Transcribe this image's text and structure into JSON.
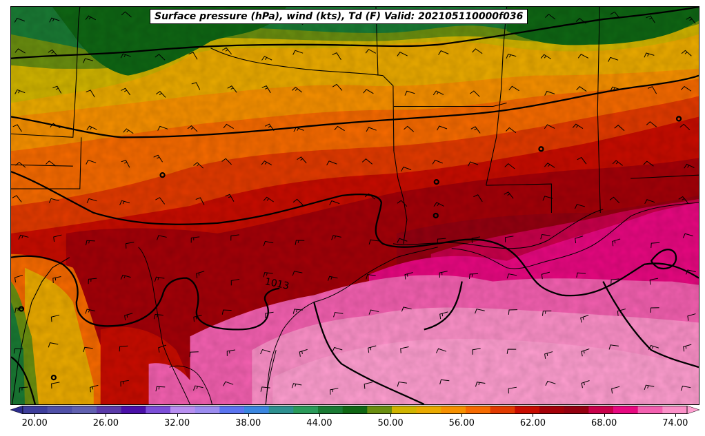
{
  "title": "Surface pressure (hPa), wind (kts), Td (F) Valid: 202105110000f036",
  "isobar_label": "1013",
  "colorbar": {
    "ticks": [
      "20.00",
      "26.00",
      "32.00",
      "38.00",
      "44.00",
      "50.00",
      "56.00",
      "62.00",
      "68.00",
      "74.00"
    ],
    "min": 18,
    "max": 76,
    "step": 2,
    "colors": [
      "#2c2c8c",
      "#3e3e9c",
      "#5050a8",
      "#6060b0",
      "#5a3aa8",
      "#4a0fa8",
      "#7c4ed8",
      "#b88ef0",
      "#9c8cf0",
      "#5a74f0",
      "#3a86e0",
      "#2e9090",
      "#2a9a5a",
      "#1a7a34",
      "#0f6614",
      "#6a8e10",
      "#d0b400",
      "#eaaa00",
      "#f69000",
      "#f66a00",
      "#e23a00",
      "#c80c00",
      "#a40008",
      "#940010",
      "#c8004a",
      "#e80880",
      "#f460b0",
      "#fc90c8",
      "#ff9ed0"
    ]
  }
}
